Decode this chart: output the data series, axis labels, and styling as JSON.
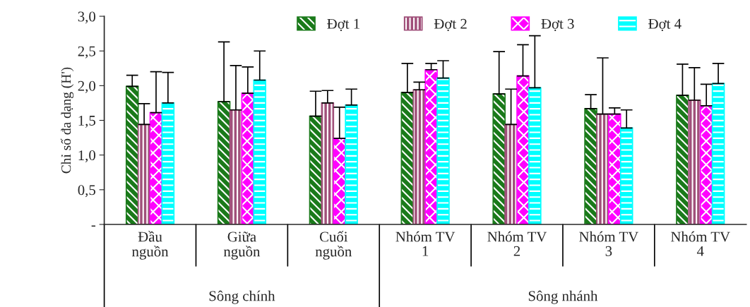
{
  "chart_data": {
    "type": "bar",
    "ylabel": "Chỉ số đa dạng (H')",
    "categories": [
      "Đầu\nnguồn",
      "Giữa\nnguồn",
      "Cuối\nnguồn",
      "Nhóm TV\n1",
      "Nhóm TV\n2",
      "Nhóm TV\n3",
      "Nhóm TV\n4"
    ],
    "series": [
      {
        "name": "Đợt 1",
        "color": "#1a7a1a",
        "values": [
          1.99,
          1.77,
          1.56,
          1.9,
          1.88,
          1.67,
          1.86
        ],
        "errors": [
          [
            1.99,
            2.15
          ],
          [
            1.77,
            2.63
          ],
          [
            1.56,
            1.92
          ],
          [
            1.9,
            2.32
          ],
          [
            1.88,
            2.49
          ],
          [
            1.67,
            1.87
          ],
          [
            1.86,
            2.31
          ]
        ]
      },
      {
        "name": "Đợt 2",
        "color": "#a0507a",
        "values": [
          1.44,
          1.65,
          1.75,
          1.94,
          1.44,
          1.59,
          1.79
        ],
        "errors": [
          [
            1.44,
            1.74
          ],
          [
            1.65,
            2.29
          ],
          [
            1.75,
            1.93
          ],
          [
            1.94,
            2.05
          ],
          [
            1.44,
            1.95
          ],
          [
            1.59,
            2.4
          ],
          [
            1.79,
            2.26
          ]
        ]
      },
      {
        "name": "Đợt 3",
        "color": "#ff00ff",
        "values": [
          1.61,
          1.89,
          1.24,
          2.23,
          2.14,
          1.59,
          1.71
        ],
        "errors": [
          [
            1.61,
            2.2
          ],
          [
            1.89,
            2.27
          ],
          [
            1.24,
            1.69
          ],
          [
            2.23,
            2.32
          ],
          [
            2.14,
            2.59
          ],
          [
            1.59,
            1.68
          ],
          [
            1.71,
            2.02
          ]
        ]
      },
      {
        "name": "Đợt 4",
        "color": "#00ffff",
        "values": [
          1.75,
          2.08,
          1.72,
          2.11,
          1.97,
          1.39,
          2.03
        ],
        "errors": [
          [
            1.75,
            2.19
          ],
          [
            2.08,
            2.5
          ],
          [
            1.72,
            1.95
          ],
          [
            2.11,
            2.36
          ],
          [
            1.97,
            2.72
          ],
          [
            1.39,
            1.65
          ],
          [
            2.03,
            2.32
          ]
        ]
      }
    ],
    "ylim": [
      0,
      3
    ],
    "yticks": [
      {
        "value": 0,
        "label": "-"
      },
      {
        "value": 0.5,
        "label": "0,5"
      },
      {
        "value": 1,
        "label": "1,0"
      },
      {
        "value": 1.5,
        "label": "1,5"
      },
      {
        "value": 2,
        "label": "2,0"
      },
      {
        "value": 2.5,
        "label": "2,5"
      },
      {
        "value": 3,
        "label": "3,0"
      }
    ],
    "annotations": [
      "Sông chính",
      "Sông nhánh"
    ],
    "grid": false,
    "legend": "top"
  }
}
